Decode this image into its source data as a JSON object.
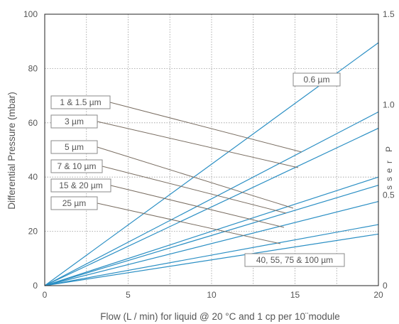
{
  "chart_data": {
    "type": "line",
    "xlabel": "Flow (L / min) for liquid @ 20 °C and 1 cp per 10¨module",
    "ylabel": "Differential Pressure (mbar)",
    "xlim": [
      0,
      20
    ],
    "ylim": [
      0,
      100
    ],
    "y2lim": [
      0,
      1.5
    ],
    "xticks": [
      "0",
      "5",
      "10",
      "15",
      "20"
    ],
    "yticks": [
      "0",
      "20",
      "40",
      "60",
      "80",
      "100"
    ],
    "y2ticks": [
      "0",
      "0.5",
      "1.0",
      "1.5"
    ],
    "y2_partial_label": [
      "P",
      "r",
      "e",
      "s",
      "s"
    ],
    "grid": true,
    "line_color": "#2b8fc4",
    "leader_color": "#7a6e62",
    "series": [
      {
        "name": "0.6 µm",
        "x": [
          0,
          20
        ],
        "y": [
          0,
          89.5
        ]
      },
      {
        "name": "1 & 1.5 µm",
        "x": [
          0,
          20
        ],
        "y": [
          0,
          64
        ]
      },
      {
        "name": "3 µm",
        "x": [
          0,
          20
        ],
        "y": [
          0,
          58
        ]
      },
      {
        "name": "5 µm",
        "x": [
          0,
          20
        ],
        "y": [
          0,
          40
        ]
      },
      {
        "name": "7 & 10 µm",
        "x": [
          0,
          20
        ],
        "y": [
          0,
          37
        ]
      },
      {
        "name": "15 & 20 µm",
        "x": [
          0,
          20
        ],
        "y": [
          0,
          31
        ]
      },
      {
        "name": "25 µm",
        "x": [
          0,
          20
        ],
        "y": [
          0,
          22.5
        ]
      },
      {
        "name": "40, 55, 75 & 100 µm",
        "x": [
          0,
          20
        ],
        "y": [
          0,
          19
        ]
      }
    ],
    "callouts": [
      {
        "text": "0.6 µm",
        "series": 0
      },
      {
        "text": "1 & 1.5 µm",
        "series": 1
      },
      {
        "text": "3 µm",
        "series": 2
      },
      {
        "text": "5 µm",
        "series": 3
      },
      {
        "text": "7 & 10 µm",
        "series": 4
      },
      {
        "text": "15 & 20 µm",
        "series": 5
      },
      {
        "text": "25 µm",
        "series": 6
      },
      {
        "text": "40, 55, 75 & 100 µm",
        "series": 7
      }
    ]
  }
}
